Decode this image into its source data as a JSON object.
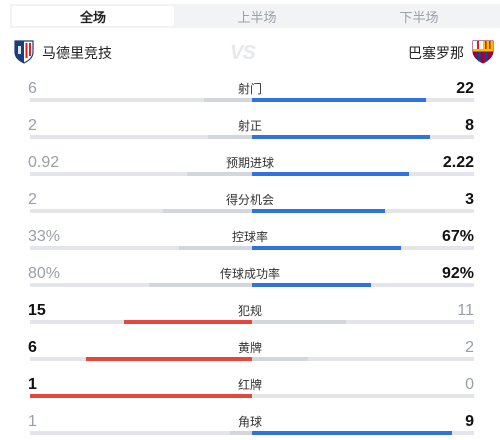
{
  "tabs": [
    {
      "label": "全场",
      "active": true
    },
    {
      "label": "上半场",
      "active": false
    },
    {
      "label": "下半场",
      "active": false
    }
  ],
  "match": {
    "home": {
      "name": "马德里竞技",
      "crest": "atletico-madrid-crest"
    },
    "away": {
      "name": "巴塞罗那",
      "crest": "barcelona-crest"
    },
    "vs": "VS"
  },
  "colors": {
    "home_leading": "#e5473d",
    "away_leading": "#2f73e0",
    "track": "#e3e5ea",
    "trailing_bar": "#d3d6dc"
  },
  "stats": [
    {
      "label": "射门",
      "home": "6",
      "away": "22",
      "home_val": 6,
      "away_val": 22
    },
    {
      "label": "射正",
      "home": "2",
      "away": "8",
      "home_val": 2,
      "away_val": 8
    },
    {
      "label": "预期进球",
      "home": "0.92",
      "away": "2.22",
      "home_val": 0.92,
      "away_val": 2.22
    },
    {
      "label": "得分机会",
      "home": "2",
      "away": "3",
      "home_val": 2,
      "away_val": 3
    },
    {
      "label": "控球率",
      "home": "33%",
      "away": "67%",
      "home_val": 33,
      "away_val": 67
    },
    {
      "label": "传球成功率",
      "home": "80%",
      "away": "92%",
      "home_val": 80,
      "away_val": 92
    },
    {
      "label": "犯规",
      "home": "15",
      "away": "11",
      "home_val": 15,
      "away_val": 11
    },
    {
      "label": "黄牌",
      "home": "6",
      "away": "2",
      "home_val": 6,
      "away_val": 2
    },
    {
      "label": "红牌",
      "home": "1",
      "away": "0",
      "home_val": 1,
      "away_val": 0
    },
    {
      "label": "角球",
      "home": "1",
      "away": "9",
      "home_val": 1,
      "away_val": 9
    }
  ]
}
